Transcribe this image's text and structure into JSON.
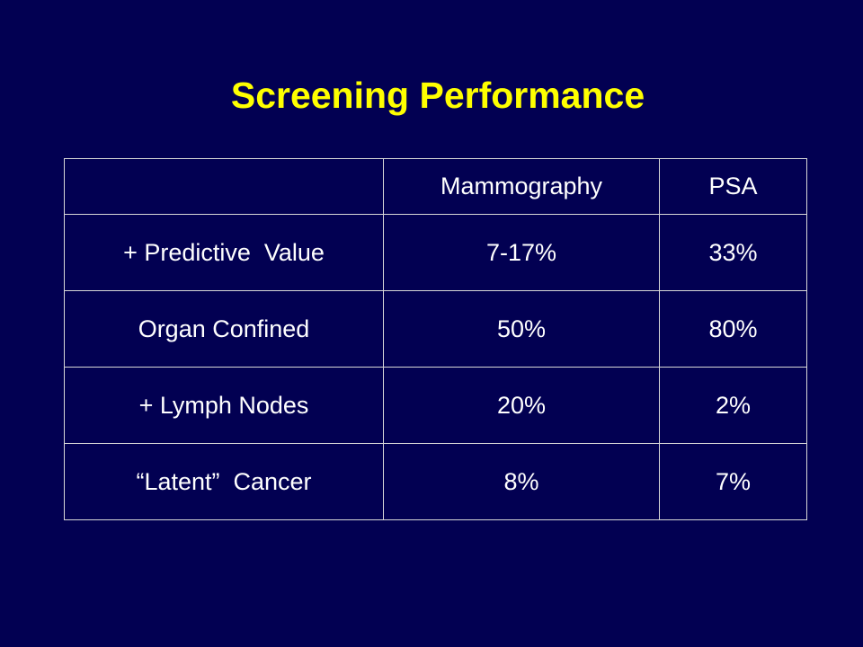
{
  "title": "Screening Performance",
  "table": {
    "headers": [
      "",
      "Mammography",
      "PSA"
    ],
    "rows": [
      [
        "+ Predictive  Value",
        "7-17%",
        "33%"
      ],
      [
        "Organ Confined",
        "50%",
        "80%"
      ],
      [
        "+ Lymph Nodes",
        "20%",
        "2%"
      ],
      [
        "“Latent”  Cancer",
        "8%",
        "7%"
      ]
    ]
  },
  "colors": {
    "background": "#020052",
    "title": "#ffff00",
    "text": "#ffffff",
    "grid": "#d8d8d8"
  }
}
